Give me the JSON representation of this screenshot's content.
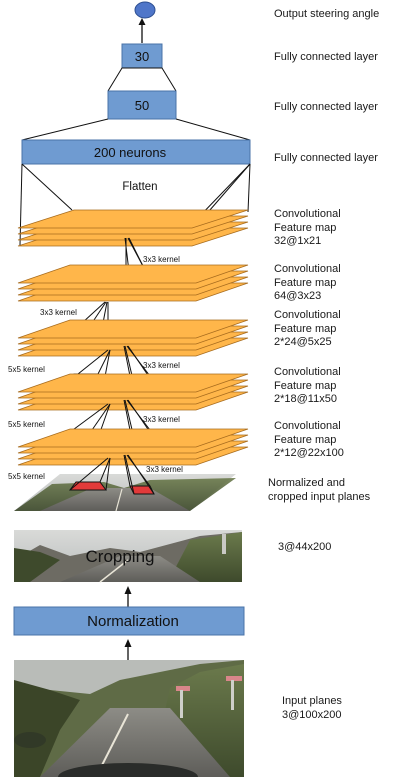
{
  "output_label": "Output steering angle",
  "fc": {
    "n30": "30",
    "n50": "50",
    "n200": "200 neurons",
    "label": "Fully connected layer",
    "flatten": "Flatten"
  },
  "kernels": {
    "k3": "3x3 kernel",
    "k5": "5x5 kernel"
  },
  "conv": {
    "word1": "Convolutional",
    "word2": "Feature map",
    "c5": "32@1x21",
    "c4": "64@3x23",
    "c3": "2*24@5x25",
    "c2": "2*18@11x50",
    "c1": "2*12@22x100"
  },
  "input_planes": {
    "line1": "Normalized and",
    "line2": "cropped input planes"
  },
  "cropping": {
    "label": "Cropping",
    "dims": "3@44x200"
  },
  "normalization": {
    "label": "Normalization"
  },
  "input": {
    "line1": "Input planes",
    "line2": "3@100x200"
  },
  "colors": {
    "fc_fill": "#6f9bd1",
    "fc_stroke": "#4a73a8",
    "plane_fill": "#ffb64a",
    "plane_stroke": "#a86c1e",
    "kernel_red": "#e23a3a",
    "output_node": "#4f76c9"
  }
}
